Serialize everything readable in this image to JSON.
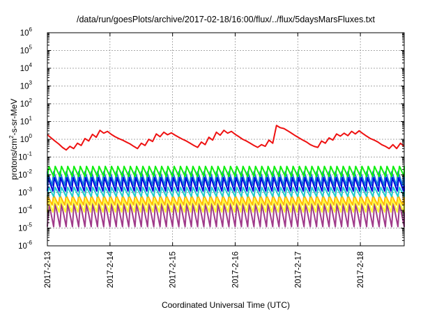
{
  "chart_data": {
    "type": "line",
    "title": "/data/run/goesPlots/archive/2017-02-18/16:00/flux/../flux/5daysMarsFluxes.txt",
    "xlabel": "Coordinated Universal Time (UTC)",
    "ylabel_parts": {
      "base": "protons/cm",
      "exp": "2",
      "rest": "-s-sr-MeV"
    },
    "yscale": "log",
    "ylim_exp": [
      -6,
      6
    ],
    "y_tick_labels": [
      {
        "base": "10",
        "exp": "6"
      },
      {
        "base": "10",
        "exp": "5"
      },
      {
        "base": "10",
        "exp": "4"
      },
      {
        "base": "10",
        "exp": "3"
      },
      {
        "base": "10",
        "exp": "2"
      },
      {
        "base": "10",
        "exp": "1"
      },
      {
        "base": "10",
        "exp": "0"
      },
      {
        "base": "10",
        "exp": "-1"
      },
      {
        "base": "10",
        "exp": "-2"
      },
      {
        "base": "10",
        "exp": "-3"
      },
      {
        "base": "10",
        "exp": "-4"
      },
      {
        "base": "10",
        "exp": "-5"
      },
      {
        "base": "10",
        "exp": "-6"
      }
    ],
    "xlim_days": [
      0,
      5.7
    ],
    "x_tick_labels": [
      "2017-2-13",
      "2017-2-14",
      "2017-2-15",
      "2017-2-16",
      "2017-2-17",
      "2017-2-18"
    ],
    "grid": true,
    "legend": "none",
    "series": [
      {
        "color": "#ee1111",
        "x": [
          0.0,
          0.06,
          0.12,
          0.18,
          0.24,
          0.3,
          0.36,
          0.42,
          0.48,
          0.54,
          0.6,
          0.66,
          0.72,
          0.78,
          0.84,
          0.9,
          0.96,
          1.02,
          1.08,
          1.14,
          1.2,
          1.26,
          1.32,
          1.38,
          1.44,
          1.5,
          1.56,
          1.62,
          1.68,
          1.74,
          1.8,
          1.86,
          1.92,
          1.98,
          2.04,
          2.1,
          2.16,
          2.22,
          2.28,
          2.34,
          2.4,
          2.46,
          2.52,
          2.58,
          2.64,
          2.7,
          2.76,
          2.82,
          2.88,
          2.94,
          3.0,
          3.06,
          3.12,
          3.18,
          3.24,
          3.3,
          3.36,
          3.42,
          3.48,
          3.54,
          3.6,
          3.66,
          3.72,
          3.78,
          3.84,
          3.9,
          3.96,
          4.02,
          4.08,
          4.14,
          4.2,
          4.26,
          4.32,
          4.38,
          4.44,
          4.5,
          4.56,
          4.62,
          4.68,
          4.74,
          4.8,
          4.86,
          4.92,
          4.98,
          5.04,
          5.1,
          5.16,
          5.22,
          5.28,
          5.34,
          5.4,
          5.46,
          5.52,
          5.58,
          5.64,
          5.7
        ],
        "y": [
          1.8,
          1.2,
          0.8,
          0.55,
          0.35,
          0.25,
          0.4,
          0.3,
          0.6,
          0.45,
          1.1,
          0.8,
          1.9,
          1.3,
          3.2,
          2.2,
          2.8,
          1.9,
          1.4,
          1.1,
          0.9,
          0.7,
          0.55,
          0.4,
          0.3,
          0.6,
          0.45,
          1.0,
          0.75,
          2.0,
          1.4,
          2.5,
          1.8,
          2.3,
          1.7,
          1.3,
          1.0,
          0.8,
          0.6,
          0.45,
          0.35,
          0.7,
          0.5,
          1.3,
          0.9,
          2.5,
          1.7,
          3.2,
          2.2,
          2.8,
          1.9,
          1.4,
          1.0,
          0.8,
          0.6,
          0.45,
          0.35,
          0.5,
          0.4,
          0.9,
          0.6,
          6.0,
          4.5,
          4.0,
          3.0,
          2.2,
          1.6,
          1.2,
          0.9,
          0.7,
          0.5,
          0.4,
          0.35,
          0.8,
          0.6,
          1.2,
          0.9,
          2.0,
          1.5,
          2.2,
          1.6,
          2.8,
          2.0,
          3.0,
          2.1,
          1.5,
          1.1,
          0.9,
          0.7,
          0.5,
          0.4,
          0.3,
          0.5,
          0.3,
          0.6,
          0.4
        ]
      }
    ],
    "band_series": [
      {
        "color": "#11ee11",
        "high": 0.03,
        "low": 0.008
      },
      {
        "color": "#1177dd",
        "high": 0.015,
        "low": 0.0025
      },
      {
        "color": "#0000dd",
        "high": 0.007,
        "low": 0.0012
      },
      {
        "color": "#22cccc",
        "high": 0.002,
        "low": 0.0006
      },
      {
        "color": "#ffbb00",
        "high": 0.0007,
        "low": 0.0002
      },
      {
        "color": "#ffff33",
        "high": 0.0004,
        "low": 8e-05
      },
      {
        "color": "#a03a8a",
        "high": 0.00025,
        "low": 1.2e-05
      }
    ],
    "band_sawtooth_period_days": 0.1
  }
}
